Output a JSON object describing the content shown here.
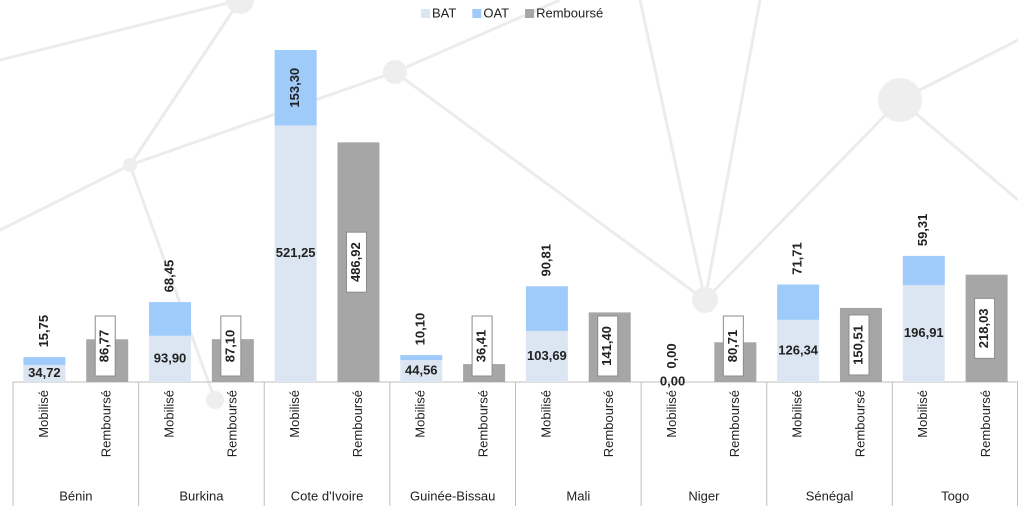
{
  "chart_data": {
    "type": "grouped-stacked-bar",
    "groups": [
      "Bénin",
      "Burkina",
      "Cote d'Ivoire",
      "Guinée-Bissau",
      "Mali",
      "Niger",
      "Sénégal",
      "Togo"
    ],
    "categories": [
      "Mobilisé",
      "Remboursé",
      "Mobilisé",
      "Remboursé",
      "Mobilisé",
      "Remboursé",
      "Mobilisé",
      "Remboursé",
      "Mobilisé",
      "Remboursé",
      "Mobilisé",
      "Remboursé",
      "Mobilisé",
      "Remboursé",
      "Mobilisé",
      "Remboursé"
    ],
    "series": [
      {
        "name": "BAT",
        "color": "#dce6f2",
        "values": [
          34.72,
          null,
          93.9,
          null,
          521.25,
          null,
          44.56,
          null,
          103.69,
          null,
          0.0,
          null,
          126.34,
          null,
          196.91,
          null
        ],
        "value_labels": [
          "34,72",
          null,
          "93,90",
          null,
          "521,25",
          null,
          "44,56",
          null,
          "103,69",
          null,
          "0,00",
          null,
          "126,34",
          null,
          "196,91",
          null
        ]
      },
      {
        "name": "OAT",
        "color": "#9fcbfa",
        "values": [
          15.75,
          null,
          68.45,
          null,
          153.3,
          null,
          10.1,
          null,
          90.81,
          null,
          0.0,
          null,
          71.71,
          null,
          59.31,
          null
        ],
        "value_labels": [
          "15,75",
          null,
          "68,45",
          null,
          "153,30",
          null,
          "10,10",
          null,
          "90,81",
          null,
          "0,00",
          null,
          "71,71",
          null,
          "59,31",
          null
        ]
      },
      {
        "name": "Remboursé",
        "color": "#a6a6a6",
        "values": [
          null,
          86.77,
          null,
          87.1,
          null,
          486.92,
          null,
          36.41,
          null,
          141.4,
          null,
          80.71,
          null,
          150.51,
          null,
          218.03
        ],
        "value_labels": [
          null,
          "86,77",
          null,
          "87,10",
          null,
          "486,92",
          null,
          "36,41",
          null,
          "141,40",
          null,
          "80,71",
          null,
          "150,51",
          null,
          "218,03"
        ]
      }
    ],
    "legend": "top"
  }
}
